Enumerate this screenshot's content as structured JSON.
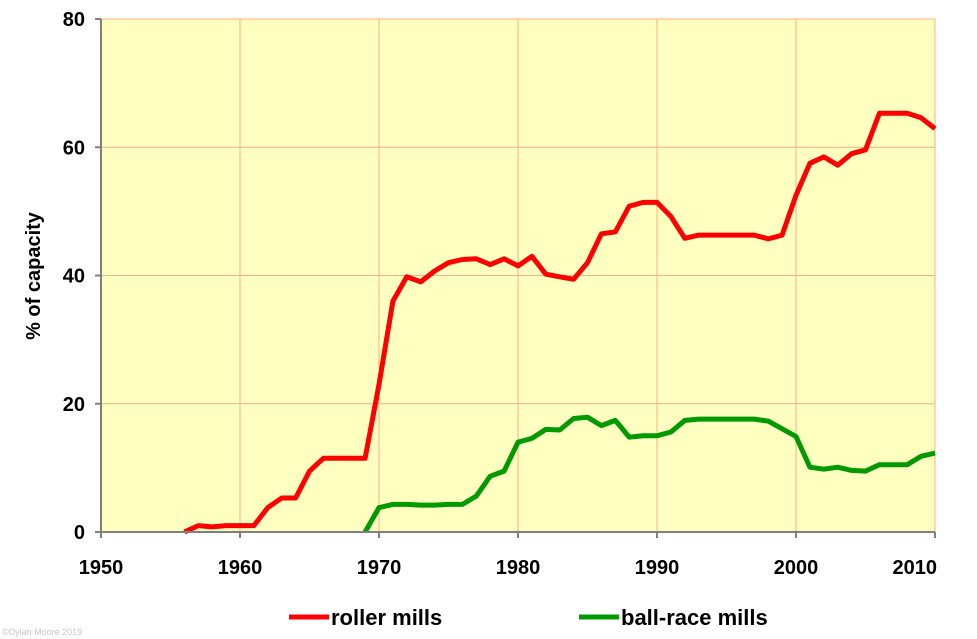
{
  "chart_data": {
    "type": "line",
    "title": "",
    "xlabel": "",
    "ylabel": "% of capacity",
    "xlim": [
      1950,
      2010
    ],
    "ylim": [
      0,
      80
    ],
    "xticks": [
      1950,
      1960,
      1970,
      1980,
      1990,
      2000,
      2010
    ],
    "yticks": [
      0,
      20,
      40,
      60,
      80
    ],
    "grid": true,
    "legend": "bottom",
    "background": "#ffffc0",
    "gridColor": "#f4b183",
    "series": [
      {
        "name": "roller mills",
        "color": "#ff0000",
        "x": [
          1956,
          1957,
          1958,
          1959,
          1960,
          1961,
          1962,
          1963,
          1964,
          1965,
          1966,
          1967,
          1968,
          1969,
          1970,
          1971,
          1972,
          1973,
          1974,
          1975,
          1976,
          1977,
          1978,
          1979,
          1980,
          1981,
          1982,
          1983,
          1984,
          1985,
          1986,
          1987,
          1988,
          1989,
          1990,
          1991,
          1992,
          1993,
          1994,
          1995,
          1996,
          1997,
          1998,
          1999,
          2000,
          2001,
          2002,
          2003,
          2004,
          2005,
          2006,
          2007,
          2008,
          2009,
          2010
        ],
        "values": [
          0,
          1,
          0.8,
          1,
          1,
          1,
          3.8,
          5.3,
          5.3,
          9.5,
          11.5,
          11.5,
          11.5,
          11.5,
          23,
          36,
          39.8,
          39,
          40.7,
          42,
          42.5,
          42.6,
          41.7,
          42.6,
          41.5,
          43,
          40.2,
          39.8,
          39.4,
          42,
          46.5,
          46.8,
          50.8,
          51.4,
          51.4,
          49.2,
          45.8,
          46.3,
          46.3,
          46.3,
          46.3,
          46.3,
          45.7,
          46.3,
          52.5,
          57.5,
          58.5,
          57.2,
          59,
          59.6,
          65.3,
          65.3,
          65.3,
          64.6,
          62.9
        ]
      },
      {
        "name": "ball-race mills",
        "color": "#009900",
        "x": [
          1969,
          1970,
          1971,
          1972,
          1973,
          1974,
          1975,
          1976,
          1977,
          1978,
          1979,
          1980,
          1981,
          1982,
          1983,
          1984,
          1985,
          1986,
          1987,
          1988,
          1989,
          1990,
          1991,
          1992,
          1993,
          1994,
          1995,
          1996,
          1997,
          1998,
          1999,
          2000,
          2001,
          2002,
          2003,
          2004,
          2005,
          2006,
          2007,
          2008,
          2009,
          2010
        ],
        "values": [
          0,
          3.8,
          4.3,
          4.3,
          4.2,
          4.2,
          4.3,
          4.3,
          5.6,
          8.7,
          9.5,
          14,
          14.6,
          16,
          15.9,
          17.7,
          17.9,
          16.6,
          17.4,
          14.8,
          15,
          15,
          15.6,
          17.4,
          17.6,
          17.6,
          17.6,
          17.6,
          17.6,
          17.3,
          16.1,
          14.9,
          10.1,
          9.8,
          10.1,
          9.6,
          9.5,
          10.5,
          10.5,
          10.5,
          11.8,
          12.3
        ]
      }
    ],
    "credit": "©Dylan Moore 2019"
  }
}
